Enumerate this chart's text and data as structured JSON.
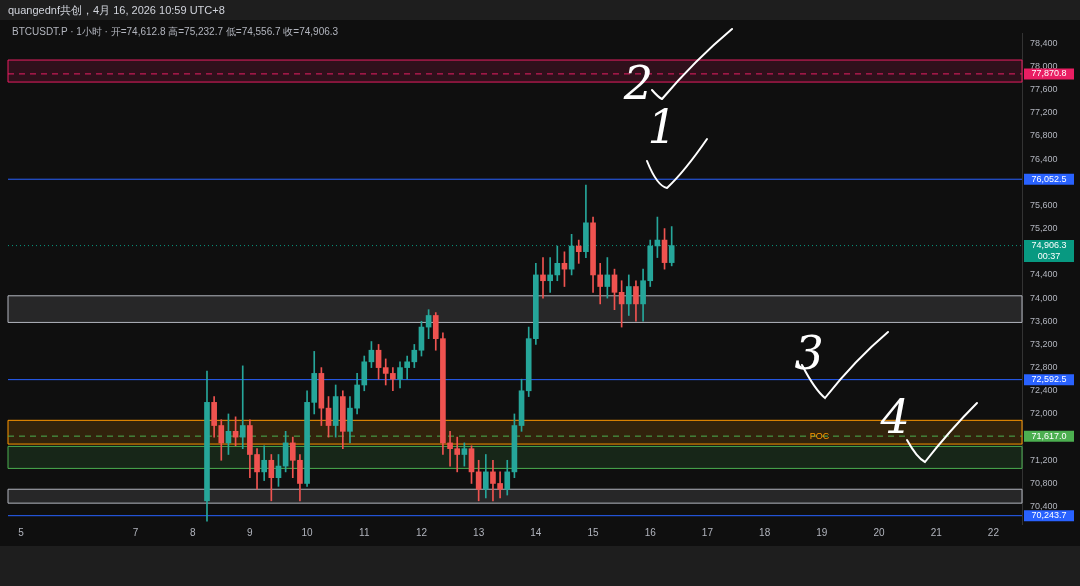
{
  "chart_data": {
    "type": "candlestick",
    "title": "quangednf共创，4月 16, 2026 10:59 UTC+8",
    "subtitle": "BTCUSDT.P · 1小时 · 开=74,612.8 高=75,232.7 低=74,556.7 收=74,906.3",
    "colors": [
      "#26a69a",
      "#ef5350",
      "#ef5350",
      "#26a69a",
      "#ef5350",
      "#26a69a",
      "#ef5350",
      "#ef5350",
      "#26a69a",
      "#ef5350",
      "#26a69a",
      "#26a69a",
      "#ef5350",
      "#ef5350",
      "#26a69a",
      "#26a69a",
      "#ef5350",
      "#ef5350",
      "#26a69a",
      "#ef5350",
      "#26a69a",
      "#26a69a",
      "#26a69a",
      "#26a69a",
      "#ef5350",
      "#ef5350",
      "#ef5350",
      "#26a69a",
      "#26a69a",
      "#26a69a",
      "#26a69a",
      "#26a69a",
      "#ef5350",
      "#ef5350",
      "#ef5350",
      "#ef5350",
      "#26a69a",
      "#ef5350",
      "#ef5350",
      "#26a69a",
      "#ef5350",
      "#ef5350",
      "#26a69a",
      "#26a69a",
      "#26a69a",
      "#26a69a",
      "#26a69a",
      "#ef5350",
      "#26a69a",
      "#26a69a",
      "#ef5350",
      "#26a69a",
      "#ef5350",
      "#26a69a",
      "#ef5350",
      "#ef5350",
      "#26a69a",
      "#ef5350",
      "#ef5350",
      "#26a69a",
      "#ef5350",
      "#26a69a",
      "#26a69a",
      "#26a69a",
      "#ef5350",
      "#26a69a"
    ],
    "x": [
      "2026-04-08T06:00",
      "2026-04-08T09:00",
      "2026-04-08T12:00",
      "2026-04-08T15:00",
      "2026-04-08T18:00",
      "2026-04-08T21:00",
      "2026-04-09T00:00",
      "2026-04-09T03:00",
      "2026-04-09T06:00",
      "2026-04-09T09:00",
      "2026-04-09T12:00",
      "2026-04-09T15:00",
      "2026-04-09T18:00",
      "2026-04-09T21:00",
      "2026-04-10T00:00",
      "2026-04-10T03:00",
      "2026-04-10T06:00",
      "2026-04-10T09:00",
      "2026-04-10T12:00",
      "2026-04-10T15:00",
      "2026-04-10T18:00",
      "2026-04-10T21:00",
      "2026-04-11T00:00",
      "2026-04-11T03:00",
      "2026-04-11T06:00",
      "2026-04-11T09:00",
      "2026-04-11T12:00",
      "2026-04-11T15:00",
      "2026-04-11T18:00",
      "2026-04-11T21:00",
      "2026-04-12T00:00",
      "2026-04-12T03:00",
      "2026-04-12T06:00",
      "2026-04-12T09:00",
      "2026-04-12T12:00",
      "2026-04-12T15:00",
      "2026-04-12T18:00",
      "2026-04-12T21:00",
      "2026-04-13T00:00",
      "2026-04-13T03:00",
      "2026-04-13T06:00",
      "2026-04-13T09:00",
      "2026-04-13T12:00",
      "2026-04-13T15:00",
      "2026-04-13T18:00",
      "2026-04-13T21:00",
      "2026-04-14T00:00",
      "2026-04-14T03:00",
      "2026-04-14T06:00",
      "2026-04-14T09:00",
      "2026-04-14T12:00",
      "2026-04-14T15:00",
      "2026-04-14T18:00",
      "2026-04-14T21:00",
      "2026-04-15T00:00",
      "2026-04-15T03:00",
      "2026-04-15T06:00",
      "2026-04-15T09:00",
      "2026-04-15T12:00",
      "2026-04-15T15:00",
      "2026-04-15T18:00",
      "2026-04-15T21:00",
      "2026-04-16T00:00",
      "2026-04-16T03:00",
      "2026-04-16T06:00",
      "2026-04-16T09:00"
    ],
    "ohlc": [
      [
        70500,
        72740,
        70150,
        72200
      ],
      [
        72200,
        72300,
        71600,
        71800
      ],
      [
        71800,
        71900,
        71200,
        71500
      ],
      [
        71500,
        72000,
        71300,
        71700
      ],
      [
        71700,
        71950,
        71450,
        71600
      ],
      [
        71600,
        72830,
        71400,
        71800
      ],
      [
        71800,
        71900,
        70900,
        71300
      ],
      [
        71300,
        71400,
        70700,
        71000
      ],
      [
        71000,
        71450,
        70850,
        71200
      ],
      [
        71200,
        71300,
        70500,
        70900
      ],
      [
        70900,
        71300,
        70750,
        71100
      ],
      [
        71100,
        71700,
        71000,
        71500
      ],
      [
        71500,
        71600,
        70900,
        71200
      ],
      [
        71200,
        71300,
        70500,
        70800
      ],
      [
        70800,
        72400,
        70750,
        72200
      ],
      [
        72200,
        73080,
        72000,
        72700
      ],
      [
        72700,
        72800,
        71800,
        72100
      ],
      [
        72100,
        72300,
        71600,
        71800
      ],
      [
        71800,
        72500,
        71600,
        72300
      ],
      [
        72300,
        72400,
        71400,
        71700
      ],
      [
        71700,
        72300,
        71500,
        72100
      ],
      [
        72100,
        72700,
        72000,
        72500
      ],
      [
        72500,
        73000,
        72400,
        72900
      ],
      [
        72900,
        73250,
        72800,
        73100
      ],
      [
        73100,
        73200,
        72600,
        72800
      ],
      [
        72800,
        72950,
        72500,
        72700
      ],
      [
        72700,
        72800,
        72400,
        72600
      ],
      [
        72600,
        72900,
        72450,
        72800
      ],
      [
        72800,
        73000,
        72600,
        72900
      ],
      [
        72900,
        73200,
        72800,
        73100
      ],
      [
        73100,
        73600,
        73000,
        73500
      ],
      [
        73500,
        73800,
        73300,
        73700
      ],
      [
        73700,
        73750,
        73100,
        73300
      ],
      [
        73300,
        73400,
        71300,
        71500
      ],
      [
        71500,
        71700,
        71100,
        71400
      ],
      [
        71400,
        71600,
        71000,
        71300
      ],
      [
        71300,
        71500,
        71100,
        71400
      ],
      [
        71400,
        71450,
        70800,
        71000
      ],
      [
        71000,
        71200,
        70500,
        70700
      ],
      [
        70700,
        71300,
        70550,
        71000
      ],
      [
        71000,
        71200,
        70500,
        70800
      ],
      [
        70800,
        71000,
        70550,
        70700
      ],
      [
        70700,
        71200,
        70600,
        71000
      ],
      [
        71000,
        72000,
        70900,
        71800
      ],
      [
        71800,
        72600,
        71700,
        72400
      ],
      [
        72400,
        73500,
        72300,
        73300
      ],
      [
        73300,
        74600,
        73200,
        74400
      ],
      [
        74400,
        74700,
        74000,
        74300
      ],
      [
        74300,
        74700,
        74100,
        74400
      ],
      [
        74400,
        74900,
        74300,
        74600
      ],
      [
        74600,
        74800,
        74200,
        74500
      ],
      [
        74500,
        75100,
        74400,
        74900
      ],
      [
        74900,
        75000,
        74600,
        74800
      ],
      [
        74800,
        75950,
        74700,
        75300
      ],
      [
        75300,
        75400,
        74100,
        74400
      ],
      [
        74400,
        74600,
        73900,
        74200
      ],
      [
        74200,
        74700,
        74000,
        74400
      ],
      [
        74400,
        74500,
        73800,
        74100
      ],
      [
        74100,
        74300,
        73500,
        73900
      ],
      [
        73900,
        74400,
        73700,
        74200
      ],
      [
        74200,
        74300,
        73600,
        73900
      ],
      [
        73900,
        74500,
        73600,
        74300
      ],
      [
        74300,
        75000,
        74200,
        74900
      ],
      [
        74900,
        75400,
        74700,
        75000
      ],
      [
        75000,
        75200,
        74500,
        74612.8
      ],
      [
        74612.8,
        75232.7,
        74556.7,
        74906.3
      ]
    ],
    "xlim": [
      "2026-04-04T18:30",
      "2026-04-22T12:00"
    ],
    "xticks": [
      {
        "value": "2026-04-05",
        "label": "5"
      },
      {
        "value": "2026-04-07",
        "label": "7"
      },
      {
        "value": "2026-04-08",
        "label": "8"
      },
      {
        "value": "2026-04-09",
        "label": "9"
      },
      {
        "value": "2026-04-10",
        "label": "10"
      },
      {
        "value": "2026-04-11",
        "label": "11"
      },
      {
        "value": "2026-04-12",
        "label": "12"
      },
      {
        "value": "2026-04-13",
        "label": "13"
      },
      {
        "value": "2026-04-14",
        "label": "14"
      },
      {
        "value": "2026-04-15",
        "label": "15"
      },
      {
        "value": "2026-04-16",
        "label": "16"
      },
      {
        "value": "2026-04-17",
        "label": "17"
      },
      {
        "value": "2026-04-18",
        "label": "18"
      },
      {
        "value": "2026-04-19",
        "label": "19"
      },
      {
        "value": "2026-04-20",
        "label": "20"
      },
      {
        "value": "2026-04-21",
        "label": "21"
      },
      {
        "value": "2026-04-22",
        "label": "22"
      }
    ],
    "ylim": [
      70100,
      78570
    ],
    "yticks": [
      {
        "value": 70400,
        "label": "70,400"
      },
      {
        "value": 70800,
        "label": "70,800"
      },
      {
        "value": 71200,
        "label": "71,200"
      },
      {
        "value": 71600,
        "label": null
      },
      {
        "value": 72000,
        "label": "72,000"
      },
      {
        "value": 72400,
        "label": "72,400"
      },
      {
        "value": 72800,
        "label": "72,800"
      },
      {
        "value": 73200,
        "label": "73,200"
      },
      {
        "value": 73600,
        "label": "73,600"
      },
      {
        "value": 74000,
        "label": "74,000"
      },
      {
        "value": 74400,
        "label": "74,400"
      },
      {
        "value": 75200,
        "label": "75,200"
      },
      {
        "value": 75600,
        "label": "75,600"
      },
      {
        "value": 76400,
        "label": "76,400"
      },
      {
        "value": 76800,
        "label": "76,800"
      },
      {
        "value": 77200,
        "label": "77,200"
      },
      {
        "value": 77600,
        "label": "77,600"
      },
      {
        "value": 78000,
        "label": "78,000"
      },
      {
        "value": 78400,
        "label": "78,400"
      }
    ],
    "ref_lines": [
      {
        "axis": "y",
        "value": 77870.8,
        "label": "77,870.8",
        "color": "#e91e63",
        "line_style": "dashed"
      },
      {
        "axis": "y",
        "value": 76052.5,
        "label": "76,052.5",
        "color": "#2962ff",
        "line_style": "solid"
      },
      {
        "axis": "y",
        "value": 74906.3,
        "label": "74,906.3\n00:37",
        "color": "#089981",
        "line_style": "dotted"
      },
      {
        "axis": "y",
        "value": 72592.5,
        "label": "72,592.5",
        "color": "#2962ff",
        "line_style": "solid"
      },
      {
        "axis": "y",
        "value": 71617.0,
        "label": "71,617.0",
        "color": "#4caf50",
        "line_style": "dashed"
      },
      {
        "axis": "y",
        "value": 70243.7,
        "label": "70,243.7",
        "color": "#2962ff",
        "line_style": "solid"
      }
    ],
    "bands": [
      {
        "axis": "y",
        "from": 77730,
        "to": 78110,
        "color": "#e91e63"
      },
      {
        "axis": "y",
        "from": 73580,
        "to": 74040,
        "color": "#b2b5be"
      },
      {
        "axis": "y",
        "from": 71480,
        "to": 71890,
        "color": "#ff9800"
      },
      {
        "axis": "y",
        "from": 71060,
        "to": 71440,
        "color": "#4caf50"
      },
      {
        "axis": "y",
        "from": 70460,
        "to": 70700,
        "color": "#b2b5be"
      }
    ],
    "annotations": [
      "1",
      {
        "text": "2",
        "x": "2026-04-15T19:00",
        "y": 77650
      },
      "3",
      "4",
      {
        "text": "POC",
        "x": "2026-04-18T23:00",
        "y": 71617
      }
    ],
    "legend": false,
    "grid": false
  }
}
